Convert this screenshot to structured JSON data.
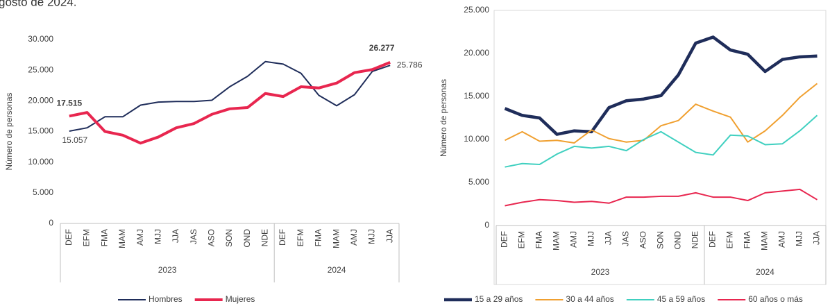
{
  "caption": "gosto de 2024.",
  "chart_data": [
    {
      "type": "line",
      "y_label": "Número de personas",
      "category_groups": [
        {
          "name": "2023",
          "categories": [
            "DEF",
            "EFM",
            "FMA",
            "MAM",
            "AMJ",
            "MJJ",
            "JJA",
            "JAS",
            "ASO",
            "SON",
            "OND",
            "NDE"
          ]
        },
        {
          "name": "2024",
          "categories": [
            "DEF",
            "EFM",
            "FMA",
            "MAM",
            "AMJ",
            "MJJ",
            "JJA"
          ]
        }
      ],
      "ylim": [
        0,
        30000
      ],
      "yticks": [
        0,
        {
          "value": 5000,
          "label": "5.000"
        },
        {
          "value": 10000,
          "label": "10.000"
        },
        {
          "value": 15000,
          "label": "15.000"
        },
        {
          "value": 20000,
          "label": "20.000"
        },
        {
          "value": 25000,
          "label": "25.000"
        },
        {
          "value": 30000,
          "label": "30.000"
        }
      ],
      "series": [
        {
          "name": "Hombres",
          "color": "#1f2d5a",
          "values": [
            15057,
            15600,
            17400,
            17400,
            19300,
            19800,
            19900,
            19900,
            20100,
            22300,
            24000,
            26400,
            26000,
            24500,
            20900,
            19200,
            21000,
            24800,
            25786
          ],
          "value_labels": [
            "15.057",
            null,
            null,
            null,
            null,
            null,
            null,
            null,
            null,
            null,
            null,
            null,
            null,
            null,
            null,
            null,
            null,
            null,
            "25.786"
          ]
        },
        {
          "name": "Mujeres",
          "color": "#e8264f",
          "values": [
            17515,
            18100,
            15000,
            14400,
            13100,
            14100,
            15600,
            16300,
            17800,
            18700,
            18900,
            21200,
            20700,
            22300,
            22100,
            22900,
            24600,
            25100,
            26277
          ],
          "value_labels": [
            "17.515",
            null,
            null,
            null,
            null,
            null,
            null,
            null,
            null,
            null,
            null,
            null,
            null,
            null,
            null,
            null,
            null,
            null,
            "26.277"
          ]
        }
      ]
    },
    {
      "type": "line",
      "y_label": "Número de personas",
      "category_groups": [
        {
          "name": "2023",
          "categories": [
            "DEF",
            "EFM",
            "FMA",
            "MAM",
            "AMJ",
            "MJJ",
            "JJA",
            "JAS",
            "ASO",
            "SON",
            "OND",
            "NDE"
          ]
        },
        {
          "name": "2024",
          "categories": [
            "DEF",
            "EFM",
            "FMA",
            "MAM",
            "AMJ",
            "MJJ",
            "JJA"
          ]
        }
      ],
      "ylim": [
        0,
        25000
      ],
      "yticks": [
        0,
        {
          "value": 5000,
          "label": "5.000"
        },
        {
          "value": 10000,
          "label": "10.000"
        },
        {
          "value": 15000,
          "label": "15.000"
        },
        {
          "value": 20000,
          "label": "20.000"
        },
        {
          "value": 25000,
          "label": "25.000"
        }
      ],
      "series": [
        {
          "name": "15 a 29 años",
          "color": "#1f2d5a",
          "values": [
            13600,
            12800,
            12500,
            10600,
            11000,
            10900,
            13700,
            14500,
            14700,
            15100,
            17500,
            21200,
            21900,
            20400,
            19900,
            17900,
            19300,
            19600,
            19700
          ]
        },
        {
          "name": "30 a 44 años",
          "color": "#f0a030",
          "values": [
            9900,
            10900,
            9800,
            9900,
            9600,
            11100,
            10100,
            9700,
            9900,
            11600,
            12200,
            14100,
            13300,
            12600,
            9700,
            11000,
            12800,
            14900,
            16500
          ]
        },
        {
          "name": "45 a 59 años",
          "color": "#40d0c0",
          "values": [
            6800,
            7200,
            7100,
            8300,
            9200,
            9000,
            9200,
            8700,
            10000,
            10900,
            9700,
            8500,
            8200,
            10500,
            10400,
            9400,
            9500,
            11000,
            12800
          ]
        },
        {
          "name": "60 años o más",
          "color": "#e8264f",
          "values": [
            2300,
            2700,
            3000,
            2900,
            2700,
            2800,
            2600,
            3300,
            3300,
            3400,
            3400,
            3800,
            3300,
            3300,
            2900,
            3800,
            4000,
            4200,
            3000
          ]
        }
      ]
    }
  ]
}
